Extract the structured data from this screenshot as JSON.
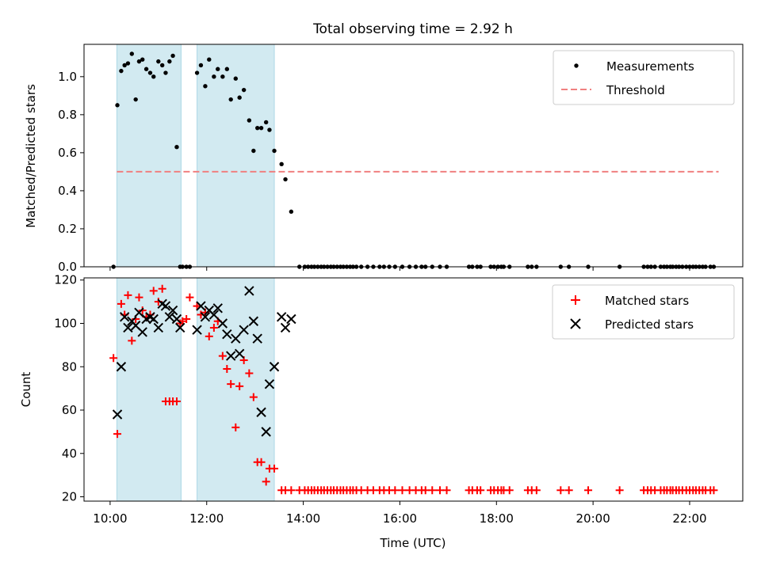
{
  "figure_title": "Total observing time = 2.92 h",
  "xlabel": "Time (UTC)",
  "x_ticks": [
    "10:00",
    "12:00",
    "14:00",
    "16:00",
    "18:00",
    "20:00",
    "22:00"
  ],
  "x_tick_hours": [
    10,
    12,
    14,
    16,
    18,
    20,
    22
  ],
  "x_range_hours": [
    9.46,
    23.1
  ],
  "observing_windows_hours": [
    [
      10.14,
      11.47
    ],
    [
      11.8,
      13.4
    ]
  ],
  "colors": {
    "shade": "#add8e6",
    "measurements": "#000000",
    "threshold": "#f08080",
    "matched": "#ff0000",
    "predicted": "#000000"
  },
  "chart_data": [
    {
      "type": "scatter",
      "ylabel": "Matched/Predicted stars",
      "ylim": [
        0,
        1.17
      ],
      "y_ticks": [
        "0.0",
        "0.2",
        "0.4",
        "0.6",
        "0.8",
        "1.0"
      ],
      "y_tick_values": [
        0,
        0.2,
        0.4,
        0.6,
        0.8,
        1.0
      ],
      "legend_position": "top-right",
      "legend": [
        "Measurements",
        "Threshold"
      ],
      "threshold": {
        "name": "Threshold",
        "y": 0.5,
        "x_range": [
          10.14,
          22.6
        ]
      },
      "series": [
        {
          "name": "Measurements",
          "x": [
            10.07,
            10.15,
            10.23,
            10.3,
            10.37,
            10.45,
            10.53,
            10.6,
            10.67,
            10.75,
            10.83,
            10.9,
            11.0,
            11.08,
            11.15,
            11.23,
            11.3,
            11.38,
            11.45,
            11.5,
            11.58,
            11.65,
            11.8,
            11.88,
            11.97,
            12.05,
            12.15,
            12.23,
            12.33,
            12.42,
            12.5,
            12.6,
            12.68,
            12.77,
            12.88,
            12.97,
            13.05,
            13.13,
            13.23,
            13.3,
            13.4,
            13.55,
            13.63,
            13.75,
            13.92,
            14.03,
            14.1,
            14.17,
            14.23,
            14.3,
            14.37,
            14.43,
            14.5,
            14.57,
            14.63,
            14.7,
            14.77,
            14.83,
            14.9,
            14.97,
            15.03,
            15.1,
            15.2,
            15.33,
            15.45,
            15.58,
            15.67,
            15.78,
            15.9,
            16.05,
            16.2,
            16.33,
            16.45,
            16.53,
            16.67,
            16.83,
            16.97,
            17.43,
            17.5,
            17.6,
            17.67,
            17.88,
            17.95,
            18.03,
            18.1,
            18.15,
            18.27,
            18.65,
            18.73,
            18.83,
            19.33,
            19.5,
            19.9,
            20.55,
            21.05,
            21.13,
            21.2,
            21.28,
            21.4,
            21.47,
            21.53,
            21.6,
            21.65,
            21.72,
            21.78,
            21.85,
            21.93,
            22.0,
            22.07,
            22.13,
            22.2,
            22.27,
            22.33,
            22.43,
            22.5
          ],
          "y": [
            0,
            0.85,
            1.03,
            1.06,
            1.07,
            1.12,
            0.88,
            1.08,
            1.09,
            1.04,
            1.02,
            1.0,
            1.08,
            1.06,
            1.02,
            1.08,
            1.11,
            0.63,
            0,
            0,
            0,
            0,
            1.02,
            1.06,
            0.95,
            1.09,
            1.0,
            1.04,
            1.0,
            1.04,
            0.88,
            0.99,
            0.89,
            0.93,
            0.77,
            0.61,
            0.73,
            0.73,
            0.76,
            0.72,
            0.61,
            0.54,
            0.46,
            0.29,
            0,
            0,
            0,
            0,
            0,
            0,
            0,
            0,
            0,
            0,
            0,
            0,
            0,
            0,
            0,
            0,
            0,
            0,
            0,
            0,
            0,
            0,
            0,
            0,
            0,
            0,
            0,
            0,
            0,
            0,
            0,
            0,
            0,
            0,
            0,
            0,
            0,
            0,
            0,
            0,
            0,
            0,
            0,
            0,
            0,
            0,
            0,
            0,
            0,
            0,
            0,
            0,
            0,
            0,
            0,
            0,
            0,
            0,
            0,
            0,
            0,
            0,
            0,
            0,
            0,
            0,
            0,
            0,
            0,
            0,
            0
          ]
        }
      ]
    },
    {
      "type": "scatter",
      "ylabel": "Count",
      "ylim": [
        18,
        121
      ],
      "y_ticks": [
        "20",
        "40",
        "60",
        "80",
        "100",
        "120"
      ],
      "y_tick_values": [
        20,
        40,
        60,
        80,
        100,
        120
      ],
      "legend_position": "top-right",
      "legend": [
        "Matched stars",
        "Predicted stars"
      ],
      "series": [
        {
          "name": "Matched stars",
          "x": [
            10.07,
            10.15,
            10.23,
            10.3,
            10.37,
            10.45,
            10.53,
            10.6,
            10.67,
            10.75,
            10.83,
            10.9,
            11.0,
            11.08,
            11.15,
            11.23,
            11.3,
            11.38,
            11.45,
            11.5,
            11.58,
            11.65,
            11.8,
            11.88,
            11.97,
            12.05,
            12.15,
            12.23,
            12.33,
            12.42,
            12.5,
            12.6,
            12.68,
            12.77,
            12.88,
            12.97,
            13.05,
            13.13,
            13.23,
            13.3,
            13.4,
            13.55,
            13.63,
            13.75,
            13.92,
            14.03,
            14.1,
            14.17,
            14.23,
            14.3,
            14.37,
            14.43,
            14.5,
            14.57,
            14.63,
            14.7,
            14.77,
            14.83,
            14.9,
            14.97,
            15.03,
            15.1,
            15.2,
            15.33,
            15.45,
            15.58,
            15.67,
            15.78,
            15.9,
            16.05,
            16.2,
            16.33,
            16.45,
            16.53,
            16.67,
            16.83,
            16.97,
            17.43,
            17.5,
            17.6,
            17.67,
            17.88,
            17.95,
            18.03,
            18.1,
            18.15,
            18.27,
            18.65,
            18.73,
            18.83,
            19.33,
            19.5,
            19.9,
            20.55,
            21.05,
            21.13,
            21.2,
            21.28,
            21.4,
            21.47,
            21.53,
            21.6,
            21.65,
            21.72,
            21.78,
            21.85,
            21.93,
            22.0,
            22.07,
            22.13,
            22.2,
            22.27,
            22.33,
            22.43,
            22.5
          ],
          "y": [
            84,
            49,
            109,
            104,
            113,
            92,
            102,
            112,
            106,
            103,
            104,
            115,
            110,
            116,
            64,
            64,
            64,
            64,
            100,
            101,
            102,
            112,
            108,
            104,
            105,
            94,
            98,
            101,
            85,
            79,
            72,
            52,
            71,
            83,
            77,
            66,
            36,
            36,
            27,
            33,
            33,
            23,
            23,
            23,
            23,
            23,
            23,
            23,
            23,
            23,
            23,
            23,
            23,
            23,
            23,
            23,
            23,
            23,
            23,
            23,
            23,
            23,
            23,
            23,
            23,
            23,
            23,
            23,
            23,
            23,
            23,
            23,
            23,
            23,
            23,
            23,
            23,
            23,
            23,
            23,
            23,
            23,
            23,
            23,
            23,
            23,
            23,
            23,
            23,
            23,
            23,
            23,
            23,
            23,
            23,
            23,
            23,
            23,
            23,
            23,
            23,
            23,
            23,
            23,
            23,
            23,
            23,
            23,
            23,
            23,
            23,
            23,
            23,
            23,
            23
          ]
        },
        {
          "name": "Predicted stars",
          "x": [
            10.15,
            10.23,
            10.3,
            10.37,
            10.45,
            10.53,
            10.6,
            10.67,
            10.75,
            10.83,
            10.9,
            11.0,
            11.08,
            11.15,
            11.23,
            11.3,
            11.38,
            11.45,
            11.8,
            11.88,
            11.97,
            12.05,
            12.15,
            12.23,
            12.33,
            12.42,
            12.5,
            12.6,
            12.68,
            12.77,
            12.88,
            12.97,
            13.05,
            13.13,
            13.23,
            13.3,
            13.4,
            13.55,
            13.63,
            13.75
          ],
          "y": [
            58,
            80,
            103,
            98,
            101,
            99,
            105,
            96,
            102,
            103,
            102,
            98,
            109,
            108,
            103,
            106,
            102,
            98,
            97,
            108,
            103,
            106,
            104,
            107,
            100,
            95,
            85,
            93,
            86,
            97,
            115,
            101,
            93,
            59,
            50,
            72,
            80,
            103,
            98,
            102
          ]
        }
      ]
    }
  ]
}
